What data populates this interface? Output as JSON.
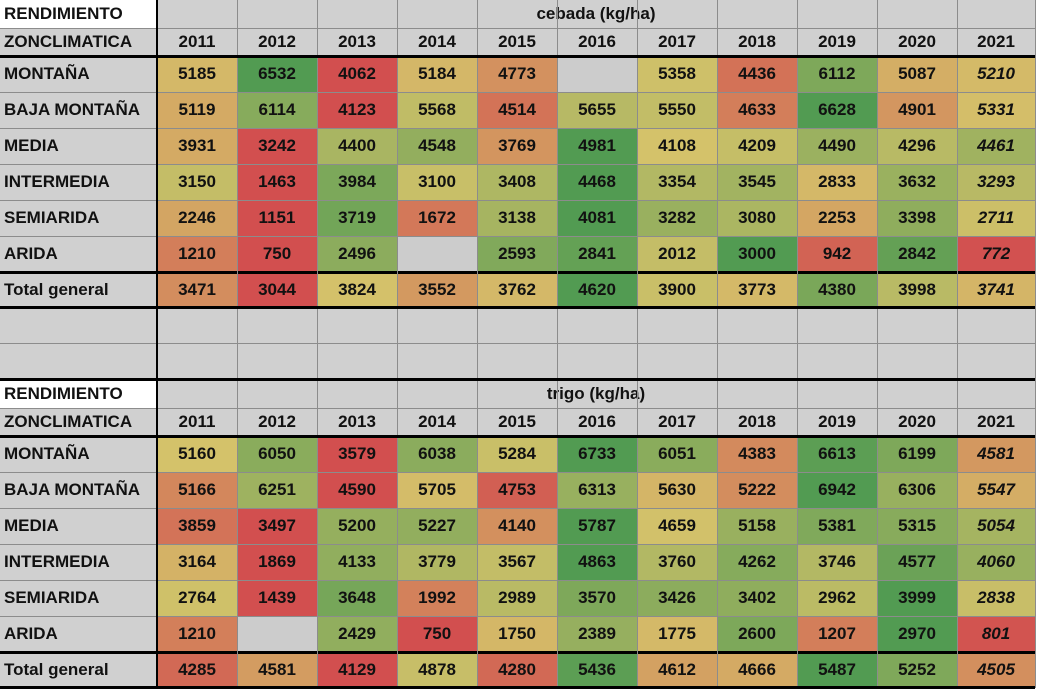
{
  "years": [
    "2011",
    "2012",
    "2013",
    "2014",
    "2015",
    "2016",
    "2017",
    "2018",
    "2019",
    "2020",
    "2021"
  ],
  "colors": {
    "header_fill": "#d0d0d0",
    "blank_fill": "#cccccc",
    "text": "#111111",
    "scale_low": "#d24f4f",
    "scale_mid": "#d4c26a",
    "scale_high": "#529b52"
  },
  "blocks": [
    {
      "corner_label": "RENDIMIENTO",
      "title": "cebada (kg/ha)",
      "zone_header": "ZONCLIMATICA",
      "rows": [
        {
          "zone": "MONTAÑA",
          "values": [
            5185,
            6532,
            4062,
            5184,
            4773,
            null,
            5358,
            4436,
            6112,
            5087,
            5210
          ]
        },
        {
          "zone": "BAJA MONTAÑA",
          "values": [
            5119,
            6114,
            4123,
            5568,
            4514,
            5655,
            5550,
            4633,
            6628,
            4901,
            5331
          ]
        },
        {
          "zone": "MEDIA",
          "values": [
            3931,
            3242,
            4400,
            4548,
            3769,
            4981,
            4108,
            4209,
            4490,
            4296,
            4461
          ]
        },
        {
          "zone": "INTERMEDIA",
          "values": [
            3150,
            1463,
            3984,
            3100,
            3408,
            4468,
            3354,
            3545,
            2833,
            3632,
            3293
          ]
        },
        {
          "zone": "SEMIARIDA",
          "values": [
            2246,
            1151,
            3719,
            1672,
            3138,
            4081,
            3282,
            3080,
            2253,
            3398,
            2711
          ]
        },
        {
          "zone": "ARIDA",
          "values": [
            1210,
            750,
            2496,
            null,
            2593,
            2841,
            2012,
            3000,
            942,
            2842,
            772
          ]
        },
        {
          "zone": "Total general",
          "values": [
            3471,
            3044,
            3824,
            3552,
            3762,
            4620,
            3900,
            3773,
            4380,
            3998,
            3741
          ]
        }
      ]
    },
    {
      "corner_label": "RENDIMIENTO",
      "title": "trigo (kg/ha)",
      "zone_header": "ZONCLIMATICA",
      "rows": [
        {
          "zone": "MONTAÑA",
          "values": [
            5160,
            6050,
            3579,
            6038,
            5284,
            6733,
            6051,
            4383,
            6613,
            6199,
            4581
          ]
        },
        {
          "zone": "BAJA MONTAÑA",
          "values": [
            5166,
            6251,
            4590,
            5705,
            4753,
            6313,
            5630,
            5222,
            6942,
            6306,
            5547
          ]
        },
        {
          "zone": "MEDIA",
          "values": [
            3859,
            3497,
            5200,
            5227,
            4140,
            5787,
            4659,
            5158,
            5381,
            5315,
            5054
          ]
        },
        {
          "zone": "INTERMEDIA",
          "values": [
            3164,
            1869,
            4133,
            3779,
            3567,
            4863,
            3760,
            4262,
            3746,
            4577,
            4060
          ]
        },
        {
          "zone": "SEMIARIDA",
          "values": [
            2764,
            1439,
            3648,
            1992,
            2989,
            3570,
            3426,
            3402,
            2962,
            3999,
            2838
          ]
        },
        {
          "zone": "ARIDA",
          "values": [
            1210,
            null,
            2429,
            750,
            1750,
            2389,
            1775,
            2600,
            1207,
            2970,
            801
          ]
        },
        {
          "zone": "Total general",
          "values": [
            4285,
            4581,
            4129,
            4878,
            4280,
            5436,
            4612,
            4666,
            5487,
            5252,
            4505
          ]
        }
      ]
    }
  ]
}
